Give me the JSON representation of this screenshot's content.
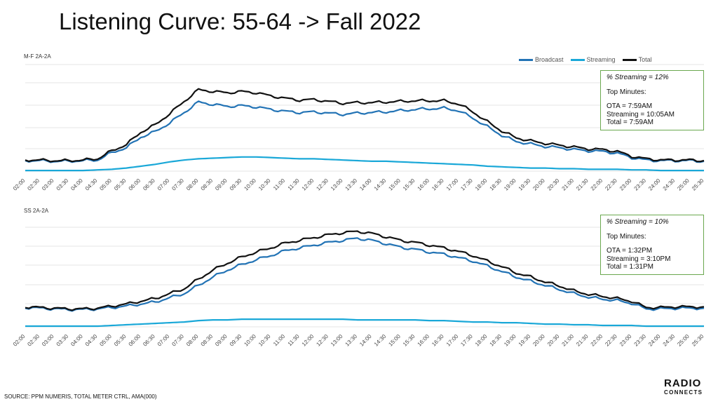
{
  "title": "Listening Curve: 55-64 -> Fall 2022",
  "legend": [
    {
      "name": "Broadcast",
      "color": "#2273b5"
    },
    {
      "name": "Streaming",
      "color": "#1aa8d8"
    },
    {
      "name": "Total",
      "color": "#111111"
    }
  ],
  "chart_data": [
    {
      "type": "line",
      "label": "M-F 2A-2A",
      "x": [
        "02:00",
        "02:30",
        "03:00",
        "03:30",
        "04:00",
        "04:30",
        "05:00",
        "05:30",
        "06:00",
        "06:30",
        "07:00",
        "07:30",
        "08:00",
        "08:30",
        "09:00",
        "09:30",
        "10:00",
        "10:30",
        "11:00",
        "11:30",
        "12:00",
        "12:30",
        "13:00",
        "13:30",
        "14:00",
        "14:30",
        "15:00",
        "15:30",
        "16:00",
        "16:30",
        "17:00",
        "17:30",
        "18:00",
        "18:30",
        "19:00",
        "19:30",
        "20:00",
        "20:30",
        "21:00",
        "21:30",
        "22:00",
        "22:30",
        "23:00",
        "23:30",
        "24:00",
        "24:30",
        "25:00",
        "25:30"
      ],
      "series": [
        {
          "name": "Broadcast",
          "values": [
            17,
            17,
            16,
            16,
            17,
            18,
            30,
            38,
            55,
            64,
            78,
            95,
            112,
            108,
            105,
            106,
            104,
            100,
            97,
            95,
            96,
            94,
            92,
            94,
            95,
            96,
            98,
            100,
            101,
            102,
            98,
            86,
            72,
            58,
            48,
            44,
            40,
            38,
            35,
            33,
            32,
            29,
            22,
            18,
            17,
            17,
            17,
            16
          ]
        },
        {
          "name": "Streaming",
          "values": [
            1,
            1,
            1,
            1,
            1,
            2,
            3,
            5,
            8,
            11,
            15,
            18,
            20,
            21,
            22,
            23,
            23,
            22,
            21,
            20,
            20,
            19,
            18,
            17,
            16,
            16,
            15,
            14,
            13,
            12,
            11,
            10,
            8,
            7,
            6,
            5,
            5,
            4,
            4,
            3,
            3,
            3,
            2,
            2,
            1,
            1,
            1,
            1
          ]
        },
        {
          "name": "Total",
          "values": [
            18,
            18,
            17,
            17,
            18,
            20,
            33,
            43,
            63,
            75,
            93,
            113,
            132,
            129,
            127,
            129,
            127,
            122,
            118,
            115,
            116,
            113,
            110,
            111,
            111,
            112,
            113,
            114,
            114,
            114,
            109,
            96,
            80,
            65,
            54,
            49,
            45,
            42,
            39,
            36,
            35,
            32,
            24,
            20,
            18,
            18,
            18,
            17
          ]
        }
      ],
      "ylim": [
        0,
        150
      ],
      "info": {
        "pct": "% Streaming =  12%",
        "heading": "Top Minutes:",
        "lines": [
          "OTA = 7:59AM",
          "Streaming = 10:05AM",
          "Total = 7:59AM"
        ]
      }
    },
    {
      "type": "line",
      "label": "SS 2A-2A",
      "x": [
        "02:00",
        "02:30",
        "03:00",
        "03:30",
        "04:00",
        "04:30",
        "05:00",
        "05:30",
        "06:00",
        "06:30",
        "07:00",
        "07:30",
        "08:00",
        "08:30",
        "09:00",
        "09:30",
        "10:00",
        "10:30",
        "11:00",
        "11:30",
        "12:00",
        "12:30",
        "13:00",
        "13:30",
        "14:00",
        "14:30",
        "15:00",
        "15:30",
        "16:00",
        "16:30",
        "17:00",
        "17:30",
        "18:00",
        "18:30",
        "19:00",
        "19:30",
        "20:00",
        "20:30",
        "21:00",
        "21:30",
        "22:00",
        "22:30",
        "23:00",
        "23:30",
        "24:00",
        "24:30",
        "25:00",
        "25:30"
      ],
      "series": [
        {
          "name": "Broadcast",
          "values": [
            28,
            27,
            26,
            25,
            25,
            26,
            28,
            30,
            33,
            36,
            42,
            48,
            60,
            72,
            82,
            90,
            97,
            103,
            110,
            114,
            118,
            122,
            125,
            128,
            125,
            120,
            115,
            112,
            108,
            105,
            100,
            95,
            88,
            80,
            72,
            66,
            60,
            54,
            48,
            43,
            40,
            38,
            34,
            26,
            26,
            27,
            27,
            27
          ]
        },
        {
          "name": "Streaming",
          "values": [
            1,
            1,
            1,
            1,
            1,
            1,
            2,
            3,
            4,
            5,
            6,
            7,
            9,
            10,
            10,
            11,
            11,
            11,
            11,
            11,
            11,
            11,
            11,
            10,
            10,
            10,
            10,
            10,
            9,
            9,
            8,
            7,
            7,
            6,
            6,
            5,
            4,
            4,
            3,
            3,
            2,
            2,
            2,
            1,
            1,
            1,
            1,
            1
          ]
        },
        {
          "name": "Total",
          "values": [
            29,
            28,
            27,
            26,
            26,
            27,
            30,
            33,
            37,
            41,
            48,
            55,
            69,
            82,
            92,
            101,
            108,
            114,
            121,
            125,
            129,
            133,
            136,
            138,
            135,
            130,
            125,
            122,
            118,
            114,
            109,
            103,
            95,
            87,
            78,
            72,
            65,
            59,
            52,
            47,
            44,
            41,
            37,
            28,
            28,
            29,
            29,
            29
          ]
        }
      ],
      "ylim": [
        0,
        150
      ],
      "info": {
        "pct": "% Streaming = 10%",
        "heading": "Top Minutes:",
        "lines": [
          "OTA = 1:32PM",
          "Streaming = 3:10PM",
          "Total = 1:31PM"
        ]
      }
    }
  ],
  "footer": "SOURCE: PPM NUMERIS, TOTAL METER CTRL, AMA(000)",
  "logo": {
    "line1": "RADIO",
    "line2": "CONNECTS"
  }
}
